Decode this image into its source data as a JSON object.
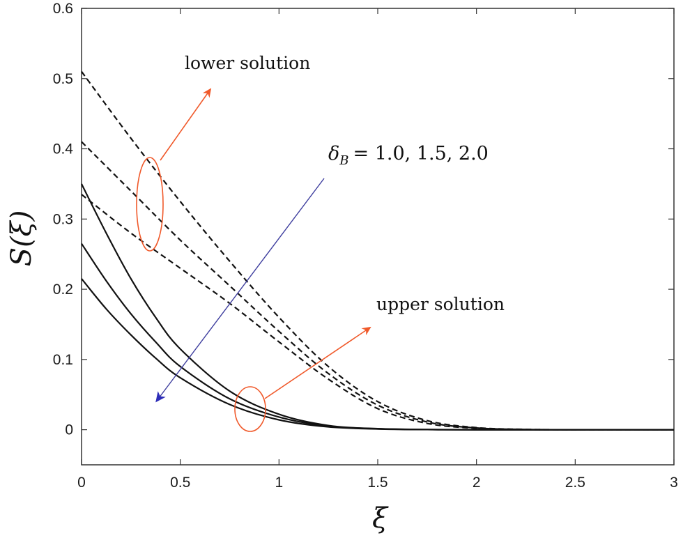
{
  "chart_data": {
    "type": "line",
    "title": "",
    "xlabel": "ξ",
    "ylabel": "S(ξ)",
    "xlim": [
      0,
      3
    ],
    "ylim": [
      -0.05,
      0.6
    ],
    "xticks": [
      0,
      0.5,
      1,
      1.5,
      2,
      2.5,
      3
    ],
    "xtick_labels": [
      "0",
      "0.5",
      "1",
      "1.5",
      "2",
      "2.5",
      "3"
    ],
    "yticks": [
      0,
      0.1,
      0.2,
      0.3,
      0.4,
      0.5,
      0.6
    ],
    "ytick_labels": [
      "0",
      "0.1",
      "0.2",
      "0.3",
      "0.4",
      "0.5",
      "0.6"
    ],
    "grid": false,
    "series": [
      {
        "style": "dashed",
        "color": "#111111",
        "points": [
          [
            0,
            0.51
          ],
          [
            0.25,
            0.415
          ],
          [
            0.5,
            0.325
          ],
          [
            0.75,
            0.24
          ],
          [
            1.0,
            0.16
          ],
          [
            1.25,
            0.09
          ],
          [
            1.5,
            0.04
          ],
          [
            1.75,
            0.013
          ],
          [
            2.0,
            0.003
          ],
          [
            2.25,
            0.0005
          ],
          [
            2.5,
            0
          ],
          [
            3.0,
            0
          ]
        ]
      },
      {
        "style": "dashed",
        "color": "#111111",
        "points": [
          [
            0,
            0.41
          ],
          [
            0.25,
            0.34
          ],
          [
            0.5,
            0.27
          ],
          [
            0.75,
            0.205
          ],
          [
            1.0,
            0.14
          ],
          [
            1.25,
            0.08
          ],
          [
            1.5,
            0.035
          ],
          [
            1.75,
            0.011
          ],
          [
            2.0,
            0.0025
          ],
          [
            2.25,
            0.0004
          ],
          [
            2.5,
            0
          ],
          [
            3.0,
            0
          ]
        ]
      },
      {
        "style": "dashed",
        "color": "#111111",
        "points": [
          [
            0,
            0.335
          ],
          [
            0.25,
            0.28
          ],
          [
            0.5,
            0.23
          ],
          [
            0.75,
            0.18
          ],
          [
            1.0,
            0.125
          ],
          [
            1.25,
            0.072
          ],
          [
            1.5,
            0.03
          ],
          [
            1.75,
            0.009
          ],
          [
            2.0,
            0.002
          ],
          [
            2.25,
            0.0003
          ],
          [
            2.5,
            0
          ],
          [
            3.0,
            0
          ]
        ]
      },
      {
        "style": "solid",
        "color": "#111111",
        "points": [
          [
            0,
            0.35
          ],
          [
            0.125,
            0.28
          ],
          [
            0.25,
            0.215
          ],
          [
            0.375,
            0.16
          ],
          [
            0.5,
            0.115
          ],
          [
            0.75,
            0.055
          ],
          [
            1.0,
            0.022
          ],
          [
            1.25,
            0.006
          ],
          [
            1.5,
            0.0015
          ],
          [
            1.75,
            0.0003
          ],
          [
            2.0,
            0
          ],
          [
            3.0,
            0
          ]
        ]
      },
      {
        "style": "solid",
        "color": "#111111",
        "points": [
          [
            0,
            0.265
          ],
          [
            0.125,
            0.212
          ],
          [
            0.25,
            0.165
          ],
          [
            0.375,
            0.125
          ],
          [
            0.5,
            0.09
          ],
          [
            0.75,
            0.044
          ],
          [
            1.0,
            0.018
          ],
          [
            1.25,
            0.005
          ],
          [
            1.5,
            0.0012
          ],
          [
            1.75,
            0.0002
          ],
          [
            2.0,
            0
          ],
          [
            3.0,
            0
          ]
        ]
      },
      {
        "style": "solid",
        "color": "#111111",
        "points": [
          [
            0,
            0.215
          ],
          [
            0.125,
            0.172
          ],
          [
            0.25,
            0.135
          ],
          [
            0.375,
            0.102
          ],
          [
            0.5,
            0.074
          ],
          [
            0.75,
            0.036
          ],
          [
            1.0,
            0.014
          ],
          [
            1.25,
            0.004
          ],
          [
            1.5,
            0.001
          ],
          [
            1.75,
            0.0002
          ],
          [
            2.0,
            0
          ],
          [
            3.0,
            0
          ]
        ]
      }
    ],
    "annotations": {
      "lower_label": "lower solution",
      "upper_label": "upper solution",
      "param_symbol": "δ",
      "param_subscript": "B",
      "param_values": "= 1.0, 1.5, 2.0"
    },
    "colors": {
      "annotation_orange": "#f0592a",
      "arrow_blue": "#3d3d9e"
    }
  }
}
